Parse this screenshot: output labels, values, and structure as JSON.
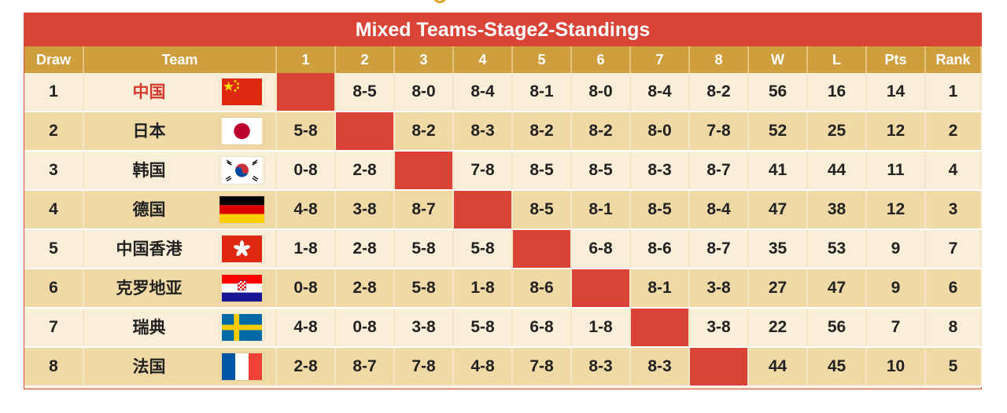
{
  "header": {
    "title": "Mixed Teams-Stage2-Standings"
  },
  "columns": [
    "Draw",
    "Team",
    "1",
    "2",
    "3",
    "4",
    "5",
    "6",
    "7",
    "8",
    "W",
    "L",
    "Pts",
    "Rank"
  ],
  "colors": {
    "title_bg": "#da4437",
    "header_bg": "#cf9f3e",
    "win_red": "#d2392c",
    "row_light": "#f9efd9",
    "row_dark": "#f1d9a6"
  },
  "rows": [
    {
      "draw": "1",
      "team": "中国",
      "flag": "china-flag-icon",
      "results": [
        "",
        "8-5",
        "8-0",
        "8-4",
        "8-1",
        "8-0",
        "8-4",
        "8-2"
      ],
      "w": "56",
      "l": "16",
      "pts": "14",
      "rank": "1"
    },
    {
      "draw": "2",
      "team": "日本",
      "flag": "japan-flag-icon",
      "results": [
        "5-8",
        "",
        "8-2",
        "8-3",
        "8-2",
        "8-2",
        "8-0",
        "7-8"
      ],
      "w": "52",
      "l": "25",
      "pts": "12",
      "rank": "2"
    },
    {
      "draw": "3",
      "team": "韩国",
      "flag": "korea-flag-icon",
      "results": [
        "0-8",
        "2-8",
        "",
        "7-8",
        "8-5",
        "8-5",
        "8-3",
        "8-7"
      ],
      "w": "41",
      "l": "44",
      "pts": "11",
      "rank": "4"
    },
    {
      "draw": "4",
      "team": "德国",
      "flag": "germany-flag-icon",
      "results": [
        "4-8",
        "3-8",
        "8-7",
        "",
        "8-5",
        "8-1",
        "8-5",
        "8-4"
      ],
      "w": "47",
      "l": "38",
      "pts": "12",
      "rank": "3"
    },
    {
      "draw": "5",
      "team": "中国香港",
      "flag": "hong-kong-flag-icon",
      "results": [
        "1-8",
        "2-8",
        "5-8",
        "5-8",
        "",
        "6-8",
        "8-6",
        "8-7"
      ],
      "w": "35",
      "l": "53",
      "pts": "9",
      "rank": "7"
    },
    {
      "draw": "6",
      "team": "克罗地亚",
      "flag": "croatia-flag-icon",
      "results": [
        "0-8",
        "2-8",
        "5-8",
        "1-8",
        "8-6",
        "",
        "8-1",
        "3-8"
      ],
      "w": "27",
      "l": "47",
      "pts": "9",
      "rank": "6"
    },
    {
      "draw": "7",
      "team": "瑞典",
      "flag": "sweden-flag-icon",
      "results": [
        "4-8",
        "0-8",
        "3-8",
        "5-8",
        "6-8",
        "1-8",
        "",
        "3-8"
      ],
      "w": "22",
      "l": "56",
      "pts": "7",
      "rank": "8"
    },
    {
      "draw": "8",
      "team": "法国",
      "flag": "france-flag-icon",
      "results": [
        "2-8",
        "8-7",
        "7-8",
        "4-8",
        "7-8",
        "8-3",
        "8-3",
        ""
      ],
      "w": "44",
      "l": "45",
      "pts": "10",
      "rank": "5"
    }
  ]
}
